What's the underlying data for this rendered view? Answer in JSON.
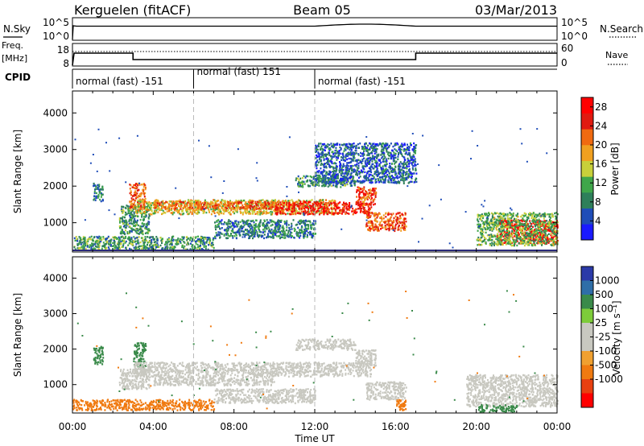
{
  "header": {
    "station": "Kerguelen (fitACF)",
    "beam": "Beam 05",
    "date": "03/Mar/2013"
  },
  "top_panels": {
    "nsky_label": "N.Sky",
    "nsky_ticks": [
      "10^5",
      "10^0"
    ],
    "nsearch_label": "N.Search",
    "nsearch_ticks": [
      "10^5",
      "10^0"
    ],
    "freq_label": "Freq.",
    "freq_unit": "[MHz]",
    "freq_ticks": [
      "18",
      "8"
    ],
    "nave_label": "Nave",
    "nave_ticks": [
      "60",
      "0"
    ],
    "cpid_label": "CPID",
    "cpid_segments": [
      {
        "label": "normal (fast) -151",
        "start": 0,
        "end": 6
      },
      {
        "label": "normal (fast) 151",
        "start": 6,
        "end": 12
      },
      {
        "label": "normal (fast) -151",
        "start": 12,
        "end": 24
      }
    ]
  },
  "colors": {
    "power_scale": [
      "#1a1aff",
      "#1f4db8",
      "#2e7f5a",
      "#3fa64a",
      "#c8d03a",
      "#f0a020",
      "#f06a10",
      "#e01a10",
      "#ff0000"
    ],
    "velocity_scale": [
      "#2b3aa8",
      "#2f6ea8",
      "#3a8a4a",
      "#7dcc3a",
      "#c8c8c0",
      "#c8c8c0",
      "#f0a030",
      "#f07a10",
      "#e84010",
      "#ff0000"
    ],
    "ground_scatter": "#c8c8c0"
  },
  "chart_data": [
    {
      "type": "heatmap",
      "name": "power",
      "ylabel": "Slant Range [km]",
      "yticks": [
        1000,
        2000,
        3000,
        4000
      ],
      "ylim": [
        200,
        4600
      ],
      "xlim": [
        0,
        24
      ],
      "colorbar": {
        "label": "Power [dB]",
        "ticks": [
          "4",
          "8",
          "12",
          "16",
          "20",
          "24",
          "28"
        ],
        "range": [
          0,
          30
        ]
      },
      "bands": [
        {
          "t0": 1.0,
          "t1": 1.5,
          "r0": 1600,
          "r1": 2100,
          "value": 8
        },
        {
          "t0": 2.3,
          "t1": 3.8,
          "r0": 700,
          "r1": 1500,
          "value": 10
        },
        {
          "t0": 2.8,
          "t1": 3.6,
          "r0": 1400,
          "r1": 2100,
          "value": 22
        },
        {
          "t0": 3.0,
          "t1": 13.0,
          "r0": 1250,
          "r1": 1650,
          "value": 16
        },
        {
          "t0": 4.0,
          "t1": 10.0,
          "r0": 1400,
          "r1": 1600,
          "value": 22
        },
        {
          "t0": 10.0,
          "t1": 14.8,
          "r0": 1250,
          "r1": 1600,
          "value": 26
        },
        {
          "t0": 14.0,
          "t1": 15.0,
          "r0": 1500,
          "r1": 2000,
          "value": 24
        },
        {
          "t0": 11.0,
          "t1": 14.0,
          "r0": 2000,
          "r1": 2300,
          "value": 10
        },
        {
          "t0": 14.5,
          "t1": 16.5,
          "r0": 800,
          "r1": 1300,
          "value": 22
        },
        {
          "t0": 21.0,
          "t1": 24.0,
          "r0": 450,
          "r1": 1100,
          "value": 28
        },
        {
          "t0": 20.0,
          "t1": 24.0,
          "r0": 400,
          "r1": 1300,
          "value": 12
        },
        {
          "t0": 0.0,
          "t1": 7.0,
          "r0": 280,
          "r1": 650,
          "value": 10
        },
        {
          "t0": 7.0,
          "t1": 12.0,
          "r0": 600,
          "r1": 1100,
          "value": 8
        },
        {
          "t0": 12.0,
          "t1": 17.0,
          "r0": 2100,
          "r1": 3200,
          "value": 6
        }
      ]
    },
    {
      "type": "heatmap",
      "name": "velocity",
      "xlabel": "Time UT",
      "ylabel": "Slant Range [km]",
      "yticks": [
        1000,
        2000,
        3000,
        4000
      ],
      "ylim": [
        200,
        4600
      ],
      "xlim": [
        0,
        24
      ],
      "xticks": [
        "00:00",
        "04:00",
        "08:00",
        "12:00",
        "16:00",
        "20:00",
        "00:00"
      ],
      "colorbar": {
        "label": "Velocity [m s⁻¹]",
        "ticks": [
          "1000",
          "500",
          "100",
          "25",
          "-25",
          "-100",
          "-500",
          "-1000"
        ]
      },
      "bands": [
        {
          "t0": 1.0,
          "t1": 1.5,
          "r0": 1600,
          "r1": 2100,
          "value": 200
        },
        {
          "t0": 2.3,
          "t1": 3.8,
          "r0": 900,
          "r1": 1500,
          "value": 0
        },
        {
          "t0": 3.0,
          "t1": 3.6,
          "r0": 1500,
          "r1": 2200,
          "value": 150
        },
        {
          "t0": 3.0,
          "t1": 14.8,
          "r0": 1250,
          "r1": 1650,
          "value": 0
        },
        {
          "t0": 4.0,
          "t1": 10.0,
          "r0": 1000,
          "r1": 1250,
          "value": 0
        },
        {
          "t0": 7.0,
          "t1": 12.0,
          "r0": 500,
          "r1": 900,
          "value": 0
        },
        {
          "t0": 14.0,
          "t1": 15.0,
          "r0": 1500,
          "r1": 2000,
          "value": 0
        },
        {
          "t0": 11.0,
          "t1": 14.0,
          "r0": 2000,
          "r1": 2300,
          "value": 0
        },
        {
          "t0": 14.5,
          "t1": 16.5,
          "r0": 600,
          "r1": 1100,
          "value": 0
        },
        {
          "t0": 16.0,
          "t1": 16.5,
          "r0": 300,
          "r1": 600,
          "value": -200
        },
        {
          "t0": 19.5,
          "t1": 24.0,
          "r0": 400,
          "r1": 1300,
          "value": 0
        },
        {
          "t0": 20.0,
          "t1": 22.0,
          "r0": 250,
          "r1": 450,
          "value": 120
        },
        {
          "t0": 0.0,
          "t1": 7.0,
          "r0": 300,
          "r1": 600,
          "value": -150
        }
      ]
    }
  ]
}
